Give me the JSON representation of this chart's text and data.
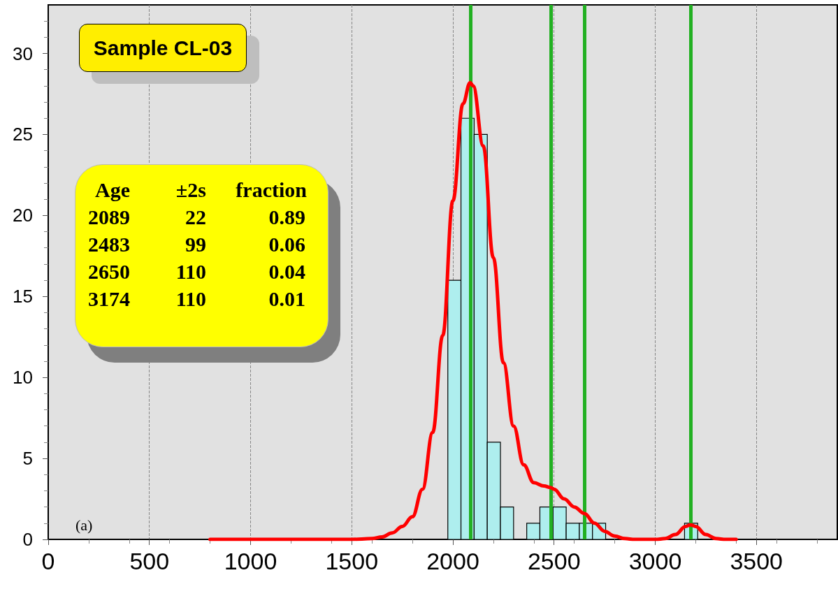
{
  "chart_data": {
    "type": "histogram",
    "series": [
      {
        "color": "#aeeeee",
        "bins": [
          1975,
          2040,
          2105,
          2170,
          2235,
          2300,
          2365,
          2430,
          2495,
          2560,
          2625,
          2690,
          2755,
          2820,
          2885,
          2950,
          3015,
          3080,
          3145,
          3210
        ],
        "values": [
          16,
          26,
          25,
          6,
          2,
          0,
          1,
          2,
          2,
          1,
          1,
          1,
          0,
          0,
          0,
          0,
          0,
          0,
          1
        ]
      },
      {
        "type": "line",
        "color": "#ff0000",
        "x": [
          800,
          1000,
          1200,
          1400,
          1500,
          1600,
          1650,
          1700,
          1750,
          1800,
          1850,
          1900,
          1950,
          2000,
          2050,
          2085,
          2100,
          2150,
          2200,
          2250,
          2300,
          2350,
          2400,
          2450,
          2483,
          2500,
          2550,
          2600,
          2650,
          2700,
          2750,
          2800,
          2850,
          2900,
          3000,
          3050,
          3100,
          3150,
          3174,
          3200,
          3250,
          3300,
          3350,
          3400
        ],
        "values": [
          0,
          0,
          0,
          0,
          0,
          0.05,
          0.15,
          0.4,
          0.8,
          1.4,
          3.1,
          6.6,
          12.6,
          20.9,
          26.9,
          28.2,
          28,
          24.3,
          17.4,
          10.9,
          7,
          4.6,
          3.5,
          3.3,
          3.2,
          3.1,
          2.5,
          2,
          1.6,
          1,
          0.5,
          0.2,
          0.05,
          0,
          0,
          0.05,
          0.3,
          0.8,
          0.9,
          0.8,
          0.3,
          0.05,
          0,
          0
        ]
      }
    ],
    "xlim": [
      0,
      3900
    ],
    "xticks": [
      0,
      500,
      1000,
      1500,
      2000,
      2500,
      3000,
      3500
    ],
    "ylim": [
      0,
      33
    ],
    "yticks": [
      0,
      5,
      10,
      15,
      20,
      25,
      30
    ],
    "grid": "x",
    "marker": "none",
    "line_style": "solid",
    "ref_lines": [
      {
        "axis": "x",
        "value": 2089,
        "color": "#22b022"
      },
      {
        "axis": "x",
        "value": 2483,
        "color": "#22b022"
      },
      {
        "axis": "x",
        "value": 2650,
        "color": "#22b022"
      },
      {
        "axis": "x",
        "value": 3174,
        "color": "#22b022"
      }
    ],
    "annotations": [
      "Sample CL-03",
      "Age ±2s fraction",
      "2089 22 0.89",
      "2483 99 0.06",
      "2650 110 0.04",
      "3174 110 0.01",
      "(a)"
    ]
  }
}
